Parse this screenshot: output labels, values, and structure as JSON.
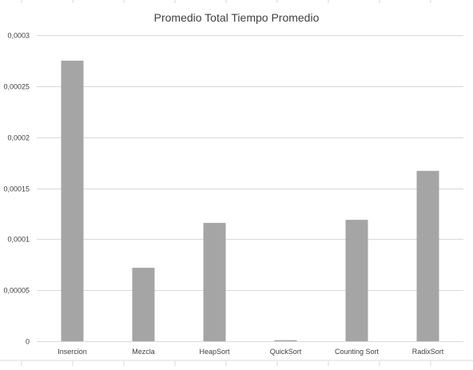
{
  "chart_data": {
    "type": "bar",
    "title": "Promedio Total Tiempo Promedio",
    "xlabel": "",
    "ylabel": "",
    "categories": [
      "Insercion",
      "Mezcla",
      "HeapSort",
      "QuickSort",
      "Counting Sort",
      "RadixSort"
    ],
    "values": [
      0.000275,
      7.2e-05,
      0.000116,
      1e-06,
      0.000119,
      0.000167
    ],
    "ylim": [
      0,
      0.0003
    ],
    "yticks": [
      0,
      5e-05,
      0.0001,
      0.00015,
      0.0002,
      0.00025,
      0.0003
    ],
    "ytick_labels": [
      "0",
      "0,00005",
      "0,0001",
      "0,00015",
      "0,0002",
      "0,00025",
      "0,0003"
    ],
    "grid": true,
    "legend": "none",
    "bar_color": "#a5a5a5"
  }
}
